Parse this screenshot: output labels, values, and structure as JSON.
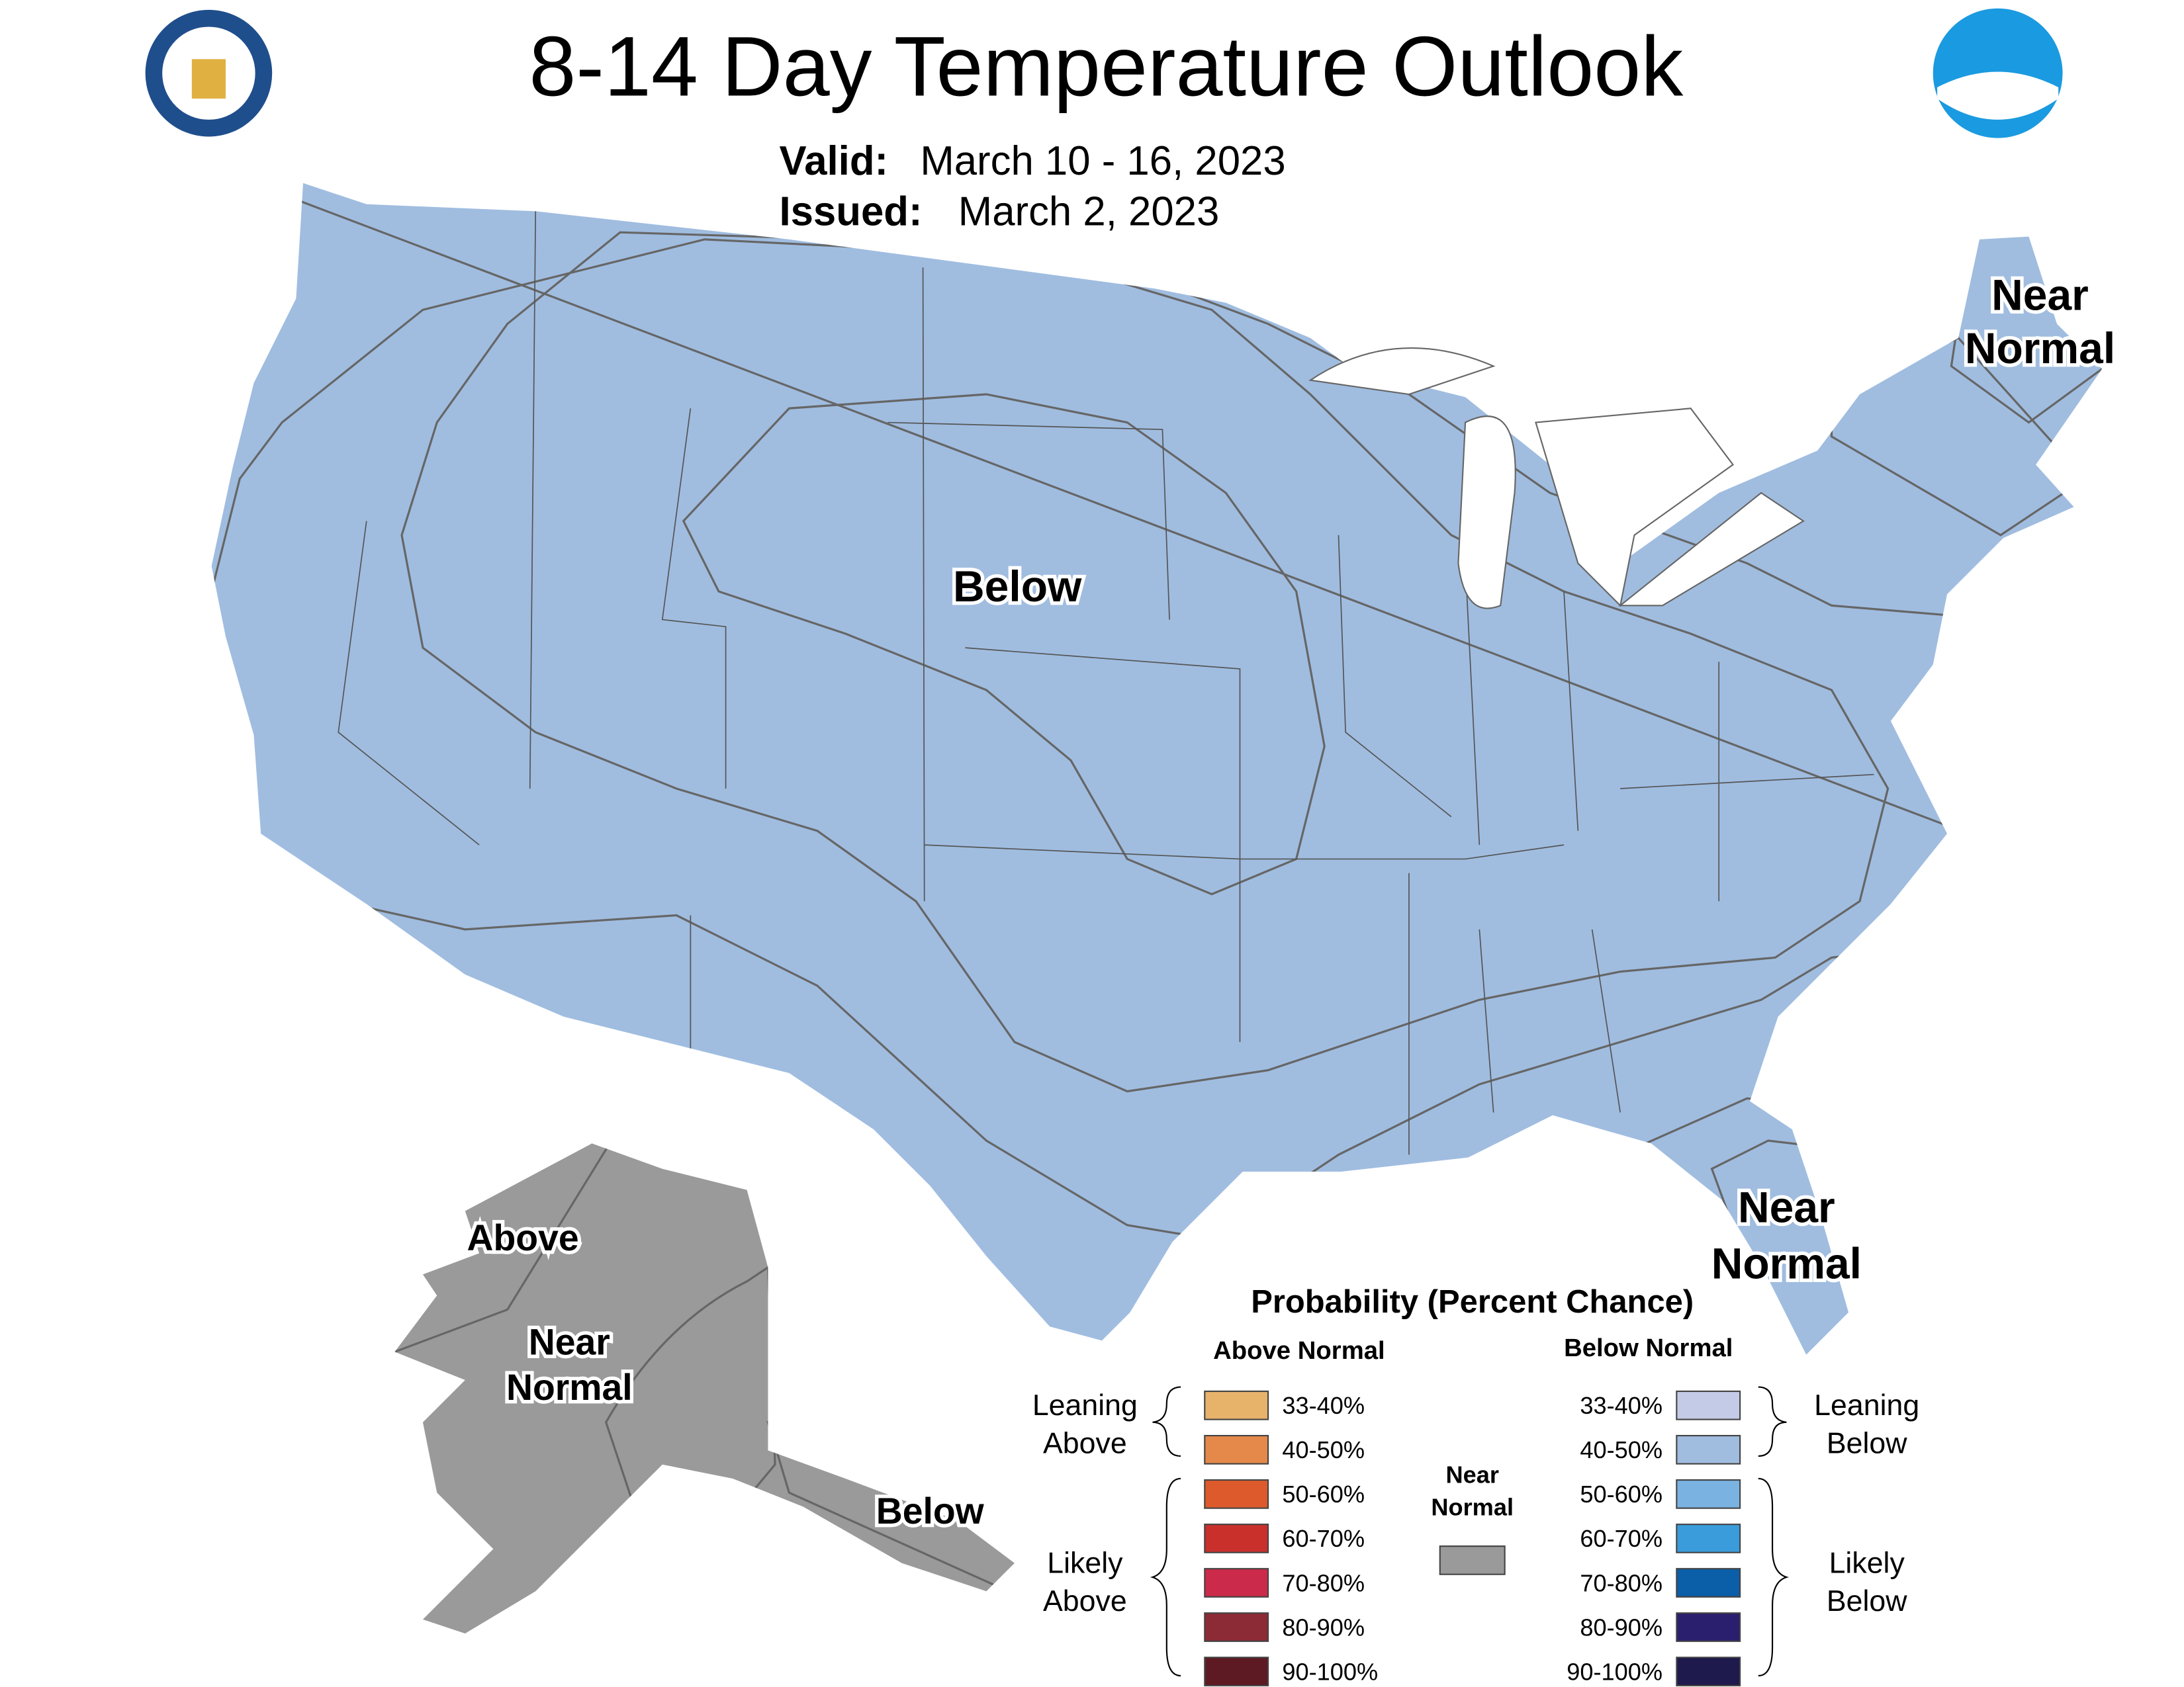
{
  "header": {
    "title": "8-14 Day Temperature Outlook",
    "valid_label": "Valid:",
    "valid_dates": "March 10 - 16, 2023",
    "issued_label": "Issued:",
    "issued_date": "March 2, 2023"
  },
  "map_labels": [
    {
      "lines": [
        "Near",
        "Normal"
      ]
    },
    {
      "lines": [
        "Below"
      ]
    },
    {
      "lines": [
        "Near",
        "Normal"
      ]
    },
    {
      "lines": [
        "Above"
      ]
    },
    {
      "lines": [
        "Near",
        "Normal"
      ]
    },
    {
      "lines": [
        "Below"
      ]
    }
  ],
  "legend": {
    "title": "Probability (Percent Chance)",
    "above_heading": "Above Normal",
    "below_heading": "Below Normal",
    "above_items": [
      {
        "label": "33-40%",
        "color": "#e7b26a"
      },
      {
        "label": "40-50%",
        "color": "#e4894a"
      },
      {
        "label": "50-60%",
        "color": "#dd5a2c"
      },
      {
        "label": "60-70%",
        "color": "#c9302c"
      },
      {
        "label": "70-80%",
        "color": "#cb2a4a"
      },
      {
        "label": "80-90%",
        "color": "#8c2a35"
      },
      {
        "label": "90-100%",
        "color": "#5e1a22"
      }
    ],
    "below_items": [
      {
        "label": "33-40%",
        "color": "#c3cbe6"
      },
      {
        "label": "40-50%",
        "color": "#a0bde0"
      },
      {
        "label": "50-60%",
        "color": "#7ab3e2"
      },
      {
        "label": "60-70%",
        "color": "#3a9cdb"
      },
      {
        "label": "70-80%",
        "color": "#0b5ea8"
      },
      {
        "label": "80-90%",
        "color": "#2a1e6e"
      },
      {
        "label": "90-100%",
        "color": "#1e1a4d"
      }
    ],
    "near_normal": {
      "lines": [
        "Near",
        "Normal"
      ],
      "color": "#9a9a9a"
    },
    "leaning_above": [
      "Leaning",
      "Above"
    ],
    "likely_above": [
      "Likely",
      "Above"
    ],
    "leaning_below": [
      "Leaning",
      "Below"
    ],
    "likely_below": [
      "Likely",
      "Below"
    ]
  }
}
